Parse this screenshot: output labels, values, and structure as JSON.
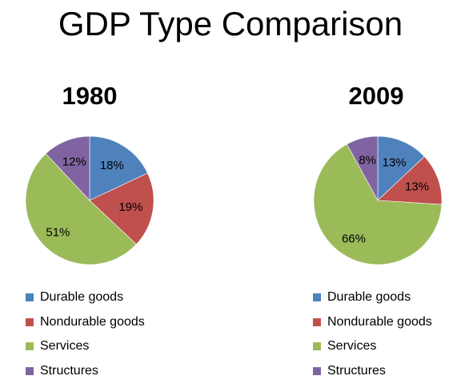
{
  "title": "GDP Type Comparison",
  "colors": {
    "Durable goods": "#4F81BD",
    "Nondurable goods": "#C0504D",
    "Services": "#9BBB59",
    "Structures": "#8064A2"
  },
  "chart_data": [
    {
      "type": "pie",
      "title": "1980",
      "categories": [
        "Durable goods",
        "Nondurable goods",
        "Services",
        "Structures"
      ],
      "values": [
        18,
        19,
        51,
        12
      ],
      "data_labels": [
        "18%",
        "19%",
        "51%",
        "12%"
      ],
      "legend": "bottom"
    },
    {
      "type": "pie",
      "title": "2009",
      "categories": [
        "Durable goods",
        "Nondurable goods",
        "Services",
        "Structures"
      ],
      "values": [
        13,
        13,
        66,
        8
      ],
      "data_labels": [
        "13%",
        "13%",
        "66%",
        "8%"
      ],
      "legend": "bottom"
    }
  ]
}
